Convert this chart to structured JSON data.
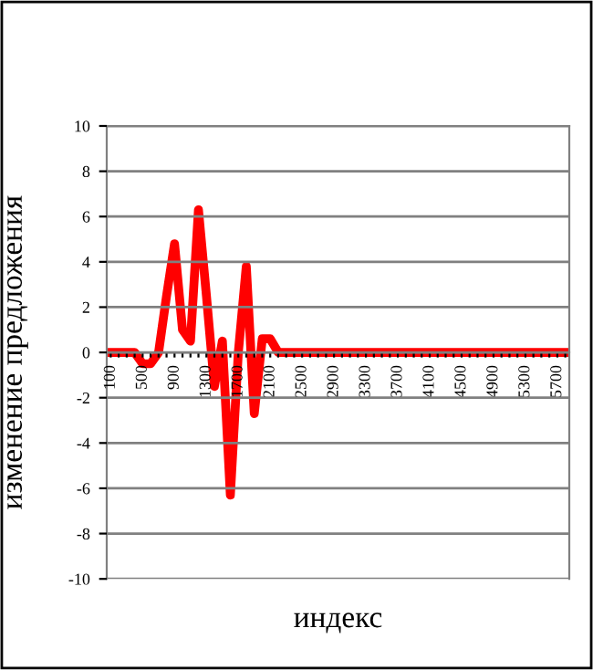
{
  "chart_data": {
    "type": "line",
    "xlabel": "индекс",
    "ylabel": "изменение предложения",
    "categories": [
      "100",
      null,
      null,
      null,
      "500",
      null,
      null,
      null,
      "900",
      null,
      null,
      null,
      "1300",
      null,
      null,
      null,
      "1700",
      null,
      null,
      null,
      "2100",
      null,
      null,
      null,
      "2500",
      null,
      null,
      null,
      "2900",
      null,
      null,
      null,
      "3300",
      null,
      null,
      null,
      "3700",
      null,
      null,
      null,
      "4100",
      null,
      null,
      null,
      "4500",
      null,
      null,
      null,
      "4900",
      null,
      null,
      null,
      "5300",
      null,
      null,
      null,
      "5700",
      null
    ],
    "series": [
      {
        "color": "#ff0000",
        "values": [
          0,
          0,
          0,
          0,
          -0.5,
          -0.5,
          0,
          2.5,
          4.8,
          1,
          0.5,
          6.3,
          2.5,
          -1.5,
          0.5,
          -6.3,
          0,
          3.8,
          -2.7,
          0.6,
          0.6,
          0,
          0,
          0,
          0,
          0,
          0,
          0,
          0,
          0,
          0,
          0,
          0,
          0,
          0,
          0,
          0,
          0,
          0,
          0,
          0,
          0,
          0,
          0,
          0,
          0,
          0,
          0,
          0,
          0,
          0,
          0,
          0,
          0,
          0,
          0,
          0,
          0
        ]
      }
    ],
    "ylim": [
      -10,
      10
    ],
    "yticks": [
      -10,
      -8,
      -6,
      -4,
      -2,
      0,
      2,
      4,
      6,
      8,
      10
    ],
    "grid": "y",
    "marker": "none",
    "line_style": "solid"
  }
}
